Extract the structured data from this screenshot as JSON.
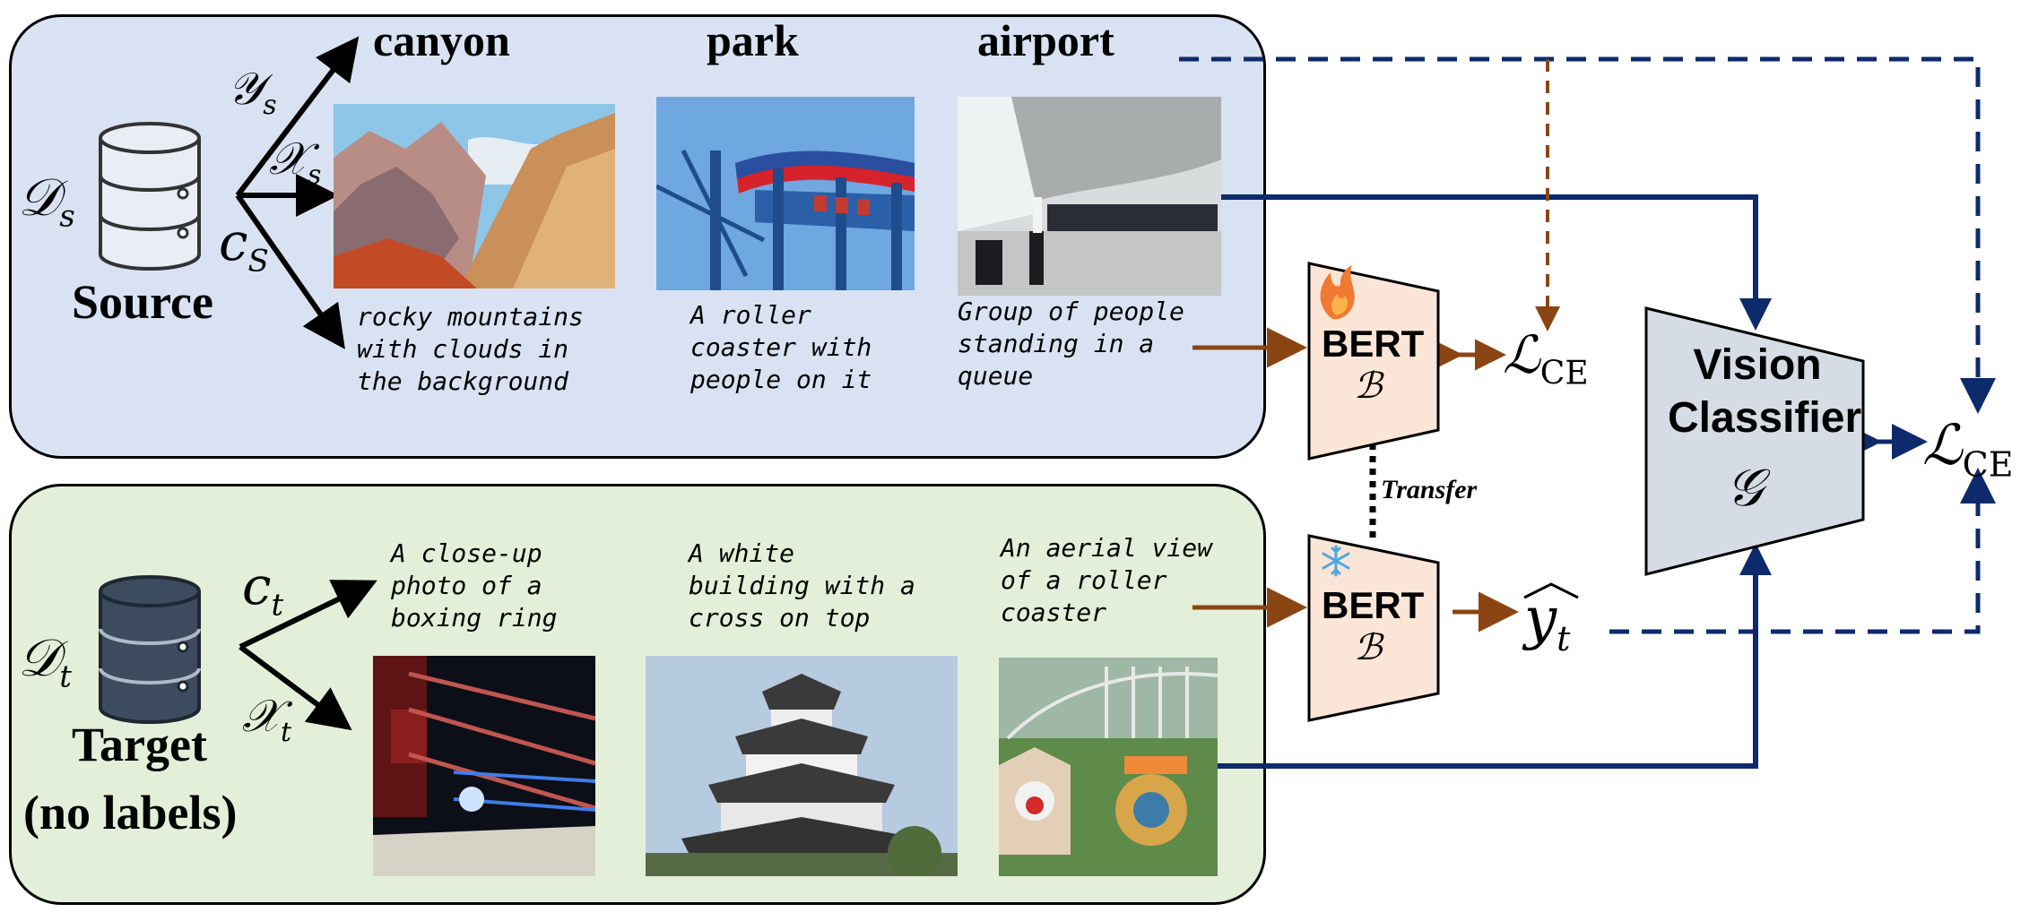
{
  "source": {
    "dataset_symbol": "𝒟",
    "dataset_sub": "s",
    "title": "Source",
    "label_symbol": "𝒴",
    "label_sub": "s",
    "image_symbol": "𝒳",
    "image_sub": "s",
    "caption_symbol": "c",
    "caption_sub": "S",
    "classes": [
      "canyon",
      "park",
      "airport"
    ],
    "captions": [
      "rocky mountains\nwith clouds in\nthe background",
      "A roller\ncoaster with\npeople on it",
      "Group of people\nstanding in a\nqueue"
    ]
  },
  "target": {
    "dataset_symbol": "𝒟",
    "dataset_sub": "t",
    "title_line1": "Target",
    "title_line2": "(no labels)",
    "caption_symbol": "c",
    "caption_sub": "t",
    "image_symbol": "𝒳",
    "image_sub": "t",
    "captions": [
      "A close-up\nphoto of a\nboxing ring",
      "A white\nbuilding with a\ncross on top",
      "An aerial view\nof a roller\ncoaster"
    ]
  },
  "bert_top": {
    "name": "BERT",
    "symbol": "ℬ",
    "icon": "flame-icon"
  },
  "bert_bottom": {
    "name": "BERT",
    "symbol": "ℬ",
    "icon": "snowflake-icon"
  },
  "transfer_label": "Transfer",
  "loss_text": {
    "symbol": "ℒ",
    "sub": "CE"
  },
  "vision_classifier": {
    "line1": "Vision",
    "line2": "Classifier",
    "symbol": "𝒢"
  },
  "prediction": {
    "symbol": "y",
    "sub": "t"
  },
  "colors": {
    "source_panel": "#d9e2f2",
    "target_panel": "#e3efd8",
    "bert_fill": "#fbe5d6",
    "classifier_fill": "#d6dce5",
    "navy_arrow": "#0d2a6b",
    "brown_arrow": "#8b4513",
    "database_source": "#e9edf5",
    "database_target": "#3d4b5e"
  }
}
